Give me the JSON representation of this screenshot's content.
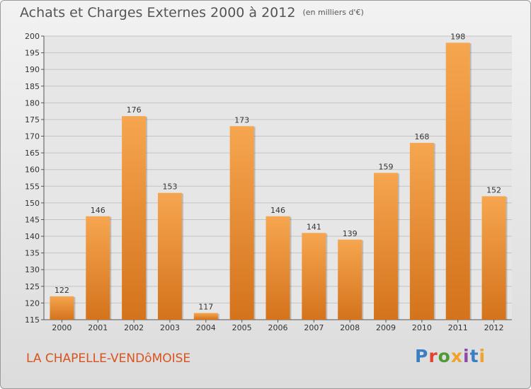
{
  "header": {
    "title": "Achats et Charges Externes 2000 à 2012",
    "unit": "(en milliers d'€)"
  },
  "footer": {
    "place": "LA CHAPELLE-VENDôMOISE",
    "brand": [
      "P",
      "r",
      "o",
      "x",
      "i",
      "t",
      "i"
    ]
  },
  "colors": {
    "bar_light": "#f6a64f",
    "bar_dark": "#d4731c",
    "place": "#d8531f"
  },
  "chart_data": {
    "type": "bar",
    "title": "Achats et Charges Externes 2000 à 2012",
    "subtitle": "(en milliers d'€)",
    "categories": [
      "2000",
      "2001",
      "2002",
      "2003",
      "2004",
      "2005",
      "2006",
      "2007",
      "2008",
      "2009",
      "2010",
      "2011",
      "2012"
    ],
    "values": [
      122,
      146,
      176,
      153,
      117,
      173,
      146,
      141,
      139,
      159,
      168,
      198,
      152
    ],
    "ylim": [
      115,
      200
    ],
    "yticks": [
      115,
      120,
      125,
      130,
      135,
      140,
      145,
      150,
      155,
      160,
      165,
      170,
      175,
      180,
      185,
      190,
      195,
      200
    ],
    "grid": true,
    "xlabel": "",
    "ylabel": ""
  }
}
